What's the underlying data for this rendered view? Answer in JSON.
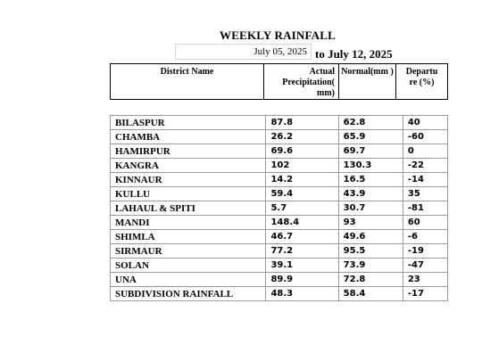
{
  "title": "WEEKLY RAINFALL",
  "date_from": "July 05, 2025",
  "date_to": "to July 12, 2025",
  "columns": {
    "district": "District Name",
    "actual": "Actual Precipitation( mm)",
    "normal": "Normal(mm )",
    "departure": "Departu re (%)"
  },
  "rows": [
    {
      "name": "BILASPUR",
      "actual": "87.8",
      "normal": "62.8",
      "departure": "40"
    },
    {
      "name": "CHAMBA",
      "actual": "26.2",
      "normal": "65.9",
      "departure": "-60"
    },
    {
      "name": "HAMIRPUR",
      "actual": "69.6",
      "normal": "69.7",
      "departure": "0"
    },
    {
      "name": "KANGRA",
      "actual": "102",
      "normal": "130.3",
      "departure": "-22"
    },
    {
      "name": "KINNAUR",
      "actual": "14.2",
      "normal": "16.5",
      "departure": "-14"
    },
    {
      "name": "KULLU",
      "actual": "59.4",
      "normal": "43.9",
      "departure": "35"
    },
    {
      "name": "LAHAUL & SPITI",
      "actual": "5.7",
      "normal": "30.7",
      "departure": "-81"
    },
    {
      "name": "MANDI",
      "actual": "148.4",
      "normal": "93",
      "departure": "60"
    },
    {
      "name": "SHIMLA",
      "actual": "46.7",
      "normal": "49.6",
      "departure": "-6"
    },
    {
      "name": "SIRMAUR",
      "actual": "77.2",
      "normal": "95.5",
      "departure": "-19"
    },
    {
      "name": "SOLAN",
      "actual": "39.1",
      "normal": "73.9",
      "departure": "-47"
    },
    {
      "name": "UNA",
      "actual": "89.9",
      "normal": "72.8",
      "departure": "23"
    },
    {
      "name": "SUBDIVISION RAINFALL",
      "actual": "48.3",
      "normal": "58.4",
      "departure": "-17"
    }
  ]
}
